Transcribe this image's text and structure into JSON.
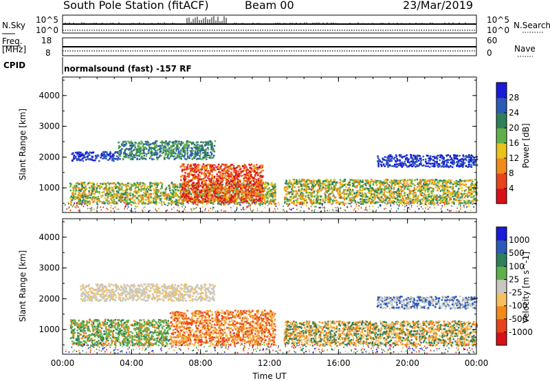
{
  "header": {
    "station": "South Pole Station (fitACF)",
    "beam": "Beam 00",
    "date": "23/Mar/2019"
  },
  "params": {
    "nsky_label": "N.Sky",
    "nsky_top": "10^5",
    "nsky_bottom": "10^0",
    "nsearch_label": "N.Search",
    "nsearch_top": "10^5",
    "nsearch_bottom": "10^0",
    "freq_label_1": "Freq.",
    "freq_label_2": "[MHz]",
    "freq_top": "18",
    "freq_bottom": "8",
    "nave_label": "Nave",
    "nave_top": "60",
    "nave_bottom": "0",
    "cpid_label": "CPID",
    "cpid_text": "normalsound (fast) -157 RF"
  },
  "chart_data": [
    {
      "type": "heatmap",
      "name": "power",
      "ylabel": "Slant Range [km]",
      "y_ticks": [
        "1000",
        "2000",
        "3000",
        "4000"
      ],
      "ylim": [
        200,
        4600
      ],
      "x_ticks": [
        "00:00",
        "04:00",
        "08:00",
        "12:00",
        "16:00",
        "20:00",
        "00:00"
      ],
      "xlim_hours": [
        0,
        24
      ],
      "colorbar": {
        "label": "Power [dB]",
        "ticks": [
          "4",
          "8",
          "12",
          "16",
          "20",
          "24",
          "28"
        ],
        "colors": [
          "#1a1ad8",
          "#2d5ab8",
          "#2e7f5a",
          "#5fb04a",
          "#e8c419",
          "#f18a1a",
          "#e8431a",
          "#d8101a"
        ]
      },
      "regions": [
        {
          "t0": 0.4,
          "t1": 12.3,
          "r0": 500,
          "r1": 1200,
          "colors": [
            "#2e7f5a",
            "#5fb04a",
            "#e8c419",
            "#f18a1a"
          ]
        },
        {
          "t0": 6.8,
          "t1": 11.6,
          "r0": 550,
          "r1": 1800,
          "colors": [
            "#f18a1a",
            "#e8431a",
            "#d8101a"
          ]
        },
        {
          "t0": 12.8,
          "t1": 24,
          "r0": 500,
          "r1": 1300,
          "colors": [
            "#2e7f5a",
            "#5fb04a",
            "#e8c419",
            "#f18a1a"
          ]
        },
        {
          "t0": 0.5,
          "t1": 3.2,
          "r0": 1900,
          "r1": 2200,
          "colors": [
            "#1a1ad8",
            "#2d5ab8"
          ]
        },
        {
          "t0": 3.2,
          "t1": 8.8,
          "r0": 1950,
          "r1": 2550,
          "colors": [
            "#2d5ab8",
            "#2e7f5a",
            "#5fb04a"
          ]
        },
        {
          "t0": 18.2,
          "t1": 24,
          "r0": 1700,
          "r1": 2100,
          "colors": [
            "#1a1ad8",
            "#2d5ab8"
          ]
        }
      ]
    },
    {
      "type": "heatmap",
      "name": "velocity",
      "ylabel": "Slant Range [km]",
      "y_ticks": [
        "1000",
        "2000",
        "3000",
        "4000"
      ],
      "ylim": [
        200,
        4600
      ],
      "x_ticks": [
        "00:00",
        "04:00",
        "08:00",
        "12:00",
        "16:00",
        "20:00",
        "00:00"
      ],
      "xlim_hours": [
        0,
        24
      ],
      "xlabel": "Time UT",
      "colorbar": {
        "label": "Velocity [m s^-1]",
        "ticks": [
          "1000",
          "500",
          "100",
          "25",
          "-25",
          "-100",
          "-500",
          "-1000"
        ],
        "colors": [
          "#1a1ad8",
          "#2d5ab8",
          "#2e7f5a",
          "#5fb04a",
          "#c8c8c0",
          "#f5c060",
          "#f18a1a",
          "#e8431a",
          "#d8101a"
        ]
      },
      "regions": [
        {
          "t0": 0.4,
          "t1": 6.2,
          "r0": 500,
          "r1": 1350,
          "colors": [
            "#2e7f5a",
            "#5fb04a",
            "#5fb04a",
            "#f18a1a"
          ]
        },
        {
          "t0": 6.2,
          "t1": 12.3,
          "r0": 500,
          "r1": 1650,
          "colors": [
            "#f18a1a",
            "#f5c060",
            "#e8431a"
          ]
        },
        {
          "t0": 12.8,
          "t1": 24,
          "r0": 500,
          "r1": 1300,
          "colors": [
            "#f18a1a",
            "#f5c060",
            "#2e7f5a"
          ]
        },
        {
          "t0": 1.0,
          "t1": 8.8,
          "r0": 1950,
          "r1": 2500,
          "colors": [
            "#c8c8c0",
            "#c8c8c0",
            "#f5c060"
          ]
        },
        {
          "t0": 18.2,
          "t1": 24,
          "r0": 1700,
          "r1": 2100,
          "colors": [
            "#c8c8c0",
            "#2d5ab8"
          ]
        }
      ]
    }
  ]
}
